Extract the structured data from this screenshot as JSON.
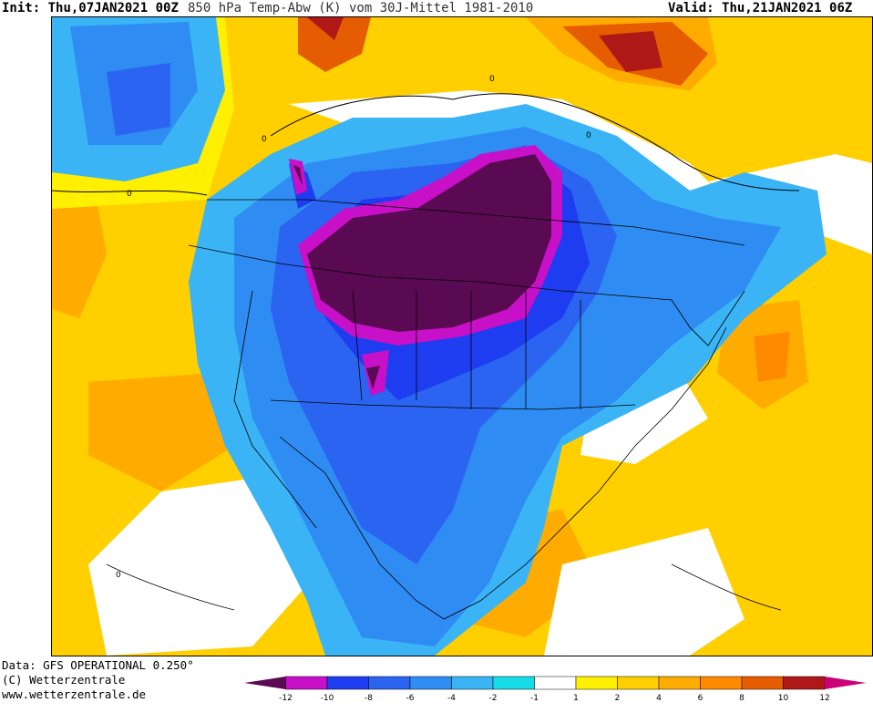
{
  "header": {
    "init_label": "Init:",
    "init_value": "Thu,07JAN2021 00Z",
    "title": "850 hPa Temp-Abw (K) vom 30J-Mittel 1981-2010",
    "valid_label": "Valid:",
    "valid_value": "Thu,21JAN2021 06Z"
  },
  "footer": {
    "data_line": "Data: GFS OPERATIONAL 0.250°",
    "copyright_line": "(C) Wetterzentrale",
    "url_line": "www.wetterzentrale.de"
  },
  "legend": {
    "ticks": [
      "-12",
      "-10",
      "-8",
      "-6",
      "-4",
      "-2",
      "-1",
      "1",
      "2",
      "4",
      "6",
      "8",
      "10",
      "12"
    ],
    "colors": [
      "#5a0a52",
      "#c810c8",
      "#1e3cf0",
      "#2a64f0",
      "#2f8cf2",
      "#3ab4f5",
      "#15dce6",
      "#ffffff",
      "#ffef00",
      "#ffcf00",
      "#ffab00",
      "#ff8a00",
      "#e65c00",
      "#b01818",
      "#cc0077"
    ]
  },
  "map": {
    "zero_contour_label": "0",
    "anomaly_colors": {
      "extreme_cold": "#5a0a52",
      "very_cold": "#c810c8",
      "cold_dark": "#1e3cf0",
      "cold": "#2a64f0",
      "cool": "#3ab4f5",
      "slightly_cool": "#15dce6",
      "neutral": "#ffffff",
      "slightly_warm": "#ffef00",
      "warm": "#ffcf00",
      "very_warm": "#ffab00",
      "hot": "#e65c00",
      "extreme_warm": "#b01818"
    }
  }
}
